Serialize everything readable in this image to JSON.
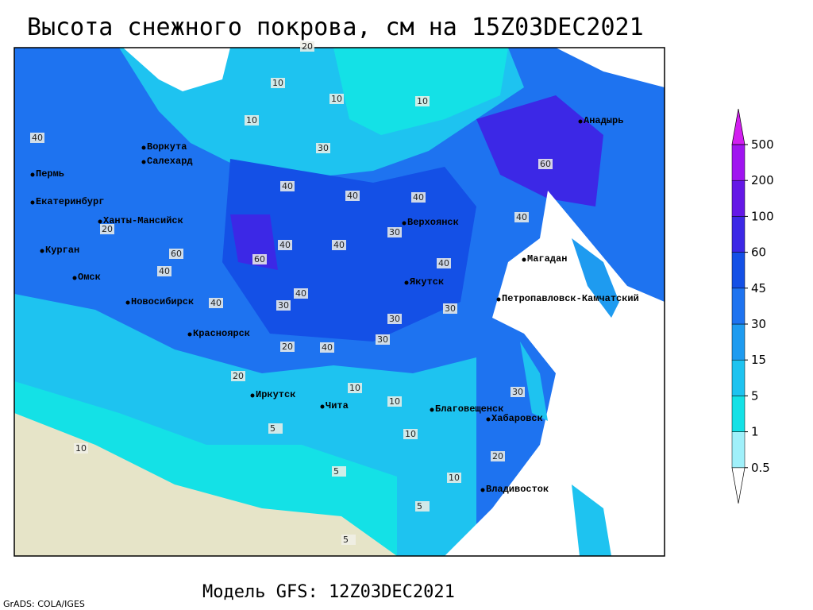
{
  "header": {
    "title": "Высота снежного покрова, см на 15Z03DEC2021"
  },
  "footer": {
    "model": "Модель GFS: 12Z03DEC2021",
    "credit": "GrADS: COLA/IGES"
  },
  "cities": [
    "Анадырь",
    "Воркута",
    "Салехард",
    "Пермь",
    "Екатеринбург",
    "Ханты-Мансийск",
    "Курган",
    "Омск",
    "Новосибирск",
    "Красноярск",
    "Иркутск",
    "Чита",
    "Верхоянск",
    "Якутск",
    "Магадан",
    "Петропавловск-Камчатский",
    "Благовещенск",
    "Хабаровск",
    "Владивосток"
  ],
  "contour_labels": [
    20,
    10,
    10,
    10,
    10,
    30,
    40,
    30,
    40,
    40,
    40,
    40,
    60,
    40,
    40,
    60,
    60,
    40,
    30,
    40,
    30,
    40,
    30,
    20,
    30,
    40,
    20,
    10,
    10,
    5,
    10,
    20,
    5,
    5,
    10,
    5,
    10,
    30,
    20,
    40
  ],
  "legend": {
    "levels": [
      0.5,
      1,
      5,
      15,
      30,
      45,
      60,
      100,
      200,
      500
    ],
    "colors": [
      "#ffffff",
      "#a0f0fa",
      "#14e1e6",
      "#1ec3f0",
      "#1e9bf0",
      "#1e73f0",
      "#1450e6",
      "#3c28e6",
      "#6418e6",
      "#a014f0",
      "#d21ef0"
    ]
  }
}
